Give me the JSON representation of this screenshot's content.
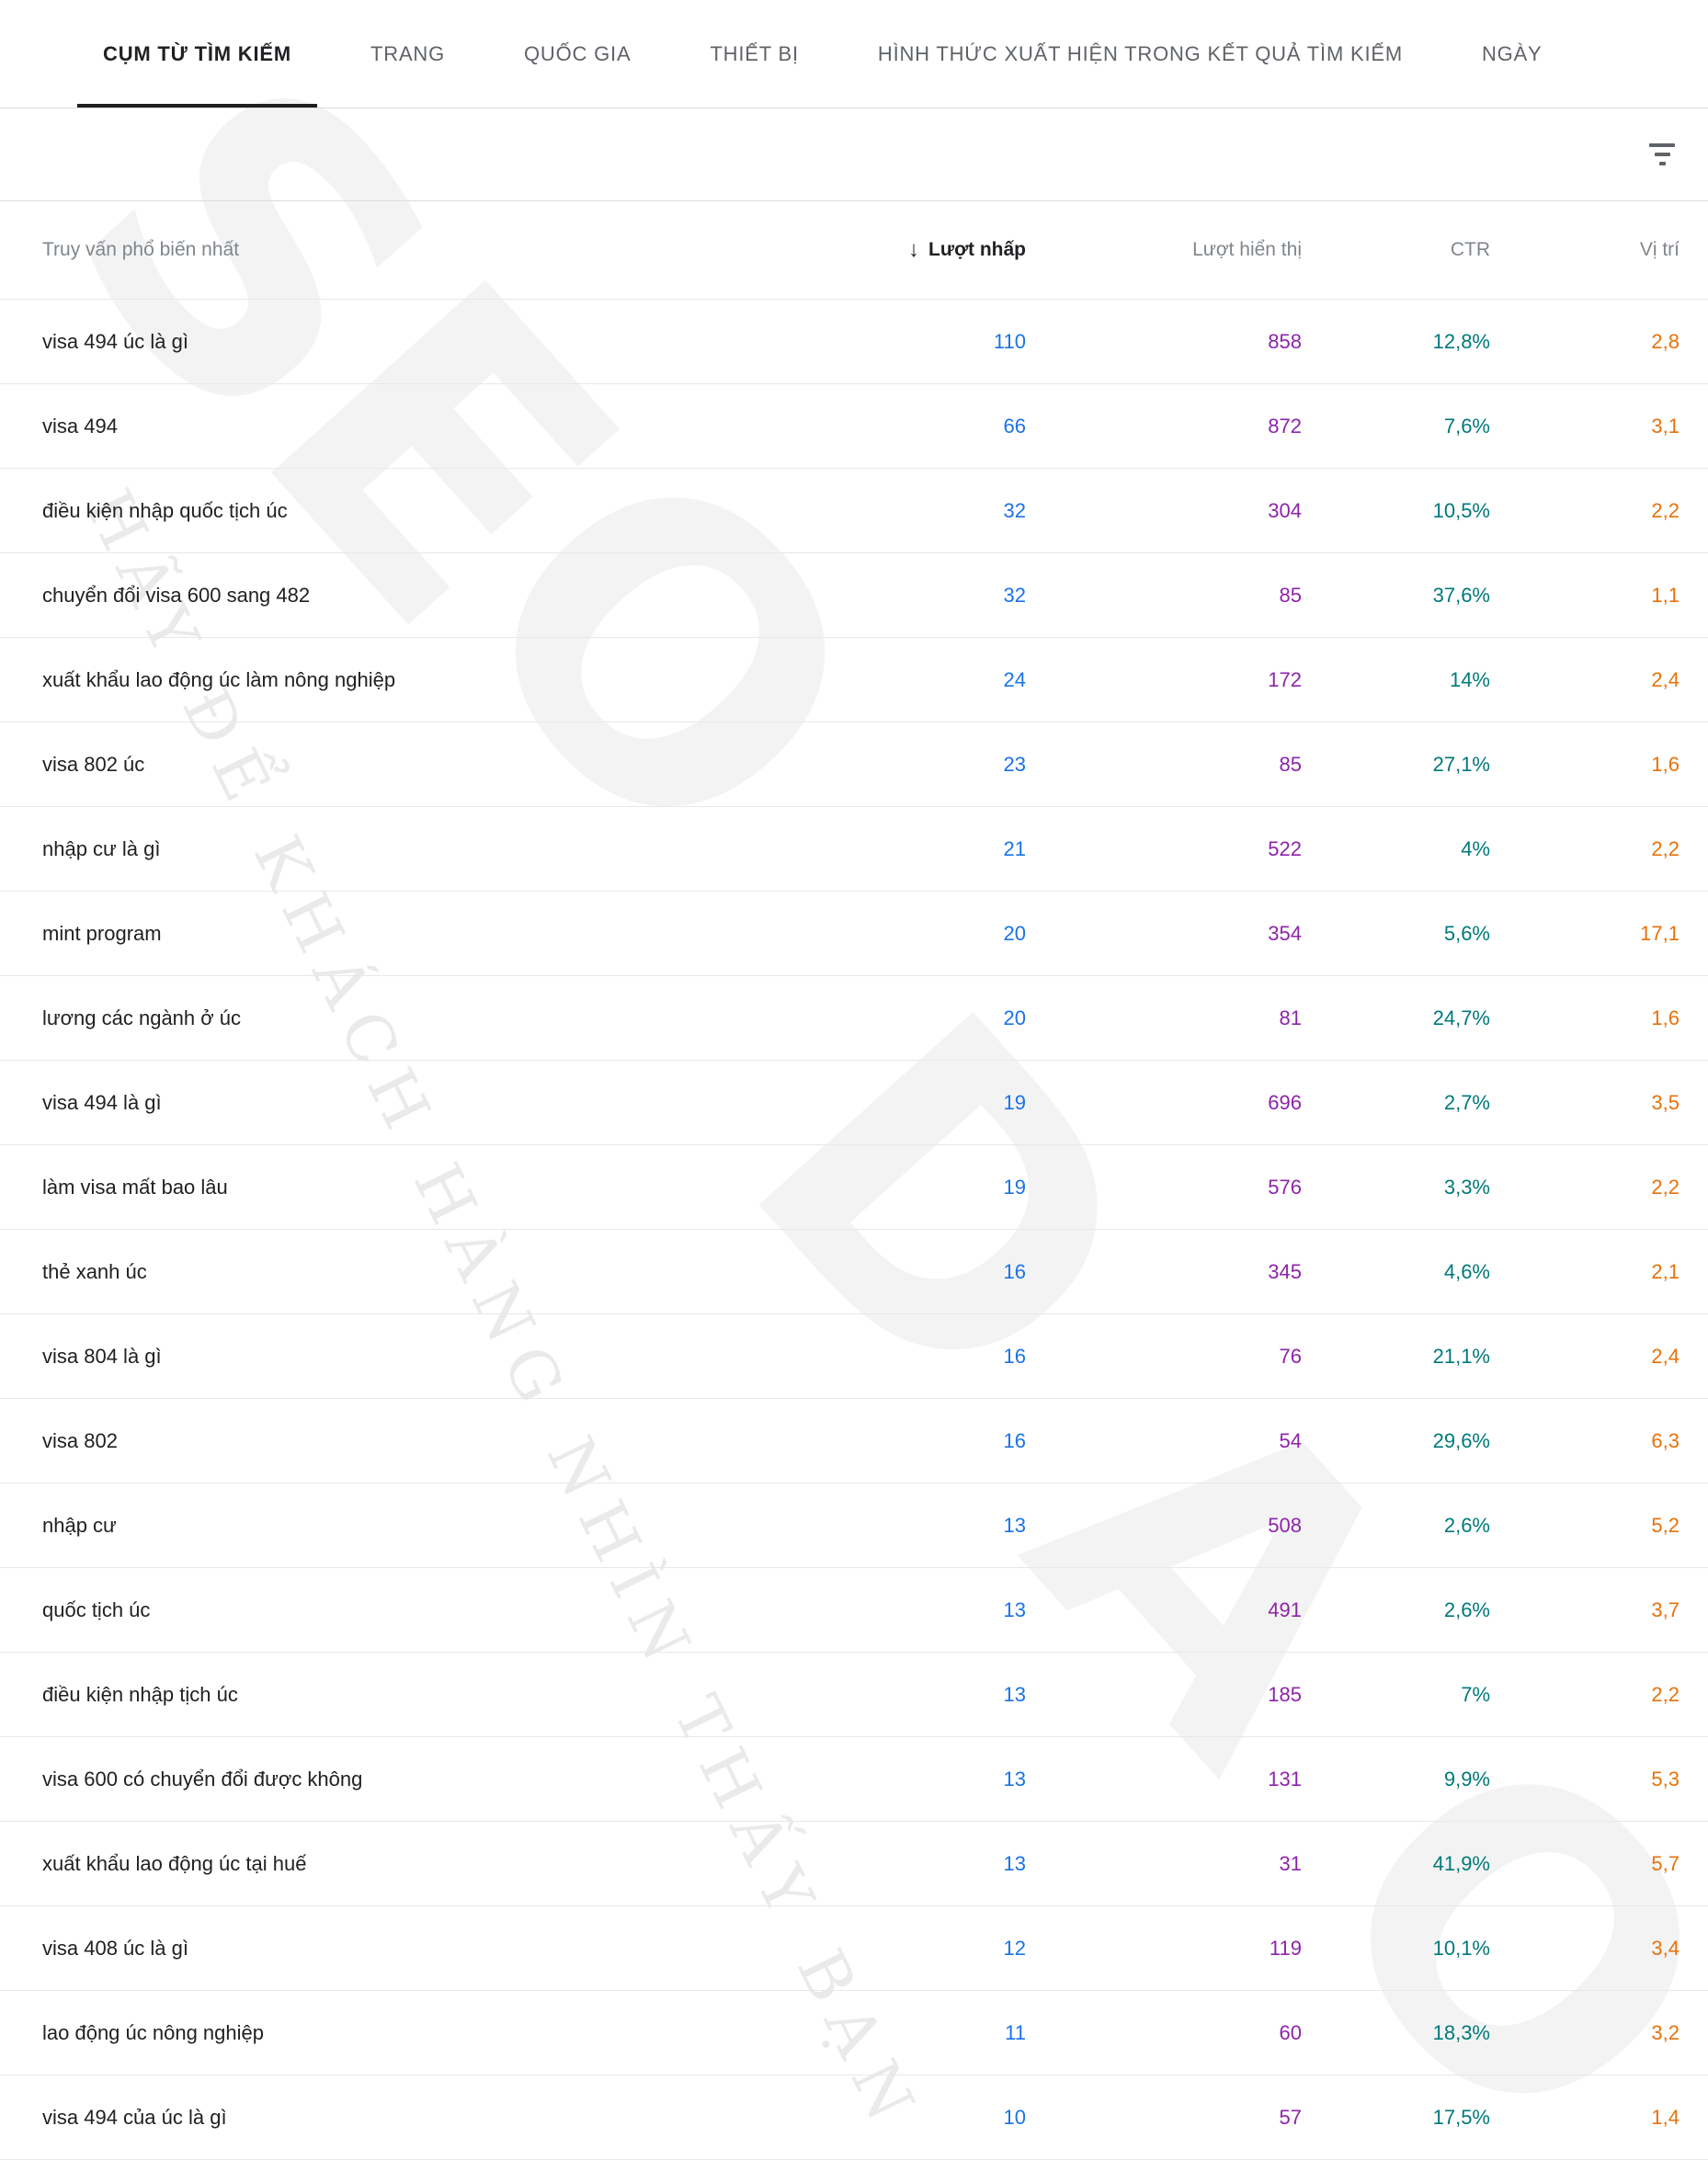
{
  "tabs": [
    {
      "label": "CỤM TỪ TÌM KIẾM",
      "active": true
    },
    {
      "label": "TRANG",
      "active": false
    },
    {
      "label": "QUỐC GIA",
      "active": false
    },
    {
      "label": "THIẾT BỊ",
      "active": false
    },
    {
      "label": "HÌNH THỨC XUẤT HIỆN TRONG KẾT QUẢ TÌM KIẾM",
      "active": false
    },
    {
      "label": "NGÀY",
      "active": false
    }
  ],
  "filter_bar": {
    "filter_icon": "filter-icon"
  },
  "table": {
    "columns": {
      "query": "Truy vấn phổ biến nhất",
      "clicks": "Lượt nhấp",
      "impressions": "Lượt hiển thị",
      "ctr": "CTR",
      "position": "Vị trí"
    },
    "sort": {
      "column": "clicks",
      "direction": "desc",
      "arrow": "↓"
    },
    "rows": [
      {
        "query": "visa 494 úc là gì",
        "clicks": "110",
        "impressions": "858",
        "ctr": "12,8%",
        "position": "2,8"
      },
      {
        "query": "visa 494",
        "clicks": "66",
        "impressions": "872",
        "ctr": "7,6%",
        "position": "3,1"
      },
      {
        "query": "điều kiện nhập quốc tịch úc",
        "clicks": "32",
        "impressions": "304",
        "ctr": "10,5%",
        "position": "2,2"
      },
      {
        "query": "chuyển đổi visa 600 sang 482",
        "clicks": "32",
        "impressions": "85",
        "ctr": "37,6%",
        "position": "1,1"
      },
      {
        "query": "xuất khẩu lao động úc làm nông nghiệp",
        "clicks": "24",
        "impressions": "172",
        "ctr": "14%",
        "position": "2,4"
      },
      {
        "query": "visa 802 úc",
        "clicks": "23",
        "impressions": "85",
        "ctr": "27,1%",
        "position": "1,6"
      },
      {
        "query": "nhập cư là gì",
        "clicks": "21",
        "impressions": "522",
        "ctr": "4%",
        "position": "2,2"
      },
      {
        "query": "mint program",
        "clicks": "20",
        "impressions": "354",
        "ctr": "5,6%",
        "position": "17,1"
      },
      {
        "query": "lương các ngành ở úc",
        "clicks": "20",
        "impressions": "81",
        "ctr": "24,7%",
        "position": "1,6"
      },
      {
        "query": "visa 494 là gì",
        "clicks": "19",
        "impressions": "696",
        "ctr": "2,7%",
        "position": "3,5"
      },
      {
        "query": "làm visa mất bao lâu",
        "clicks": "19",
        "impressions": "576",
        "ctr": "3,3%",
        "position": "2,2"
      },
      {
        "query": "thẻ xanh úc",
        "clicks": "16",
        "impressions": "345",
        "ctr": "4,6%",
        "position": "2,1"
      },
      {
        "query": "visa 804 là gì",
        "clicks": "16",
        "impressions": "76",
        "ctr": "21,1%",
        "position": "2,4"
      },
      {
        "query": "visa 802",
        "clicks": "16",
        "impressions": "54",
        "ctr": "29,6%",
        "position": "6,3"
      },
      {
        "query": "nhập cư",
        "clicks": "13",
        "impressions": "508",
        "ctr": "2,6%",
        "position": "5,2"
      },
      {
        "query": "quốc tịch úc",
        "clicks": "13",
        "impressions": "491",
        "ctr": "2,6%",
        "position": "3,7"
      },
      {
        "query": "điều kiện nhập tịch úc",
        "clicks": "13",
        "impressions": "185",
        "ctr": "7%",
        "position": "2,2"
      },
      {
        "query": "visa 600 có chuyển đổi được không",
        "clicks": "13",
        "impressions": "131",
        "ctr": "9,9%",
        "position": "5,3"
      },
      {
        "query": "xuất khẩu lao động úc tại huế",
        "clicks": "13",
        "impressions": "31",
        "ctr": "41,9%",
        "position": "5,7"
      },
      {
        "query": "visa 408 úc là gì",
        "clicks": "12",
        "impressions": "119",
        "ctr": "10,1%",
        "position": "3,4"
      },
      {
        "query": "lao động úc nông nghiệp",
        "clicks": "11",
        "impressions": "60",
        "ctr": "18,3%",
        "position": "3,2"
      },
      {
        "query": "visa 494 của úc là gì",
        "clicks": "10",
        "impressions": "57",
        "ctr": "17,5%",
        "position": "1,4"
      }
    ]
  },
  "watermark": {
    "letters": [
      "S",
      "E",
      "O",
      "D",
      "A",
      "O"
    ],
    "slogan": "HÃY ĐỂ KHÁCH HÀNG NHÌN THẤY BẠN"
  },
  "colors": {
    "clicks": "#1a73e8",
    "impressions": "#8e24aa",
    "ctr": "#00797b",
    "position": "#e8710a",
    "tab-active": "#202124",
    "tab-inactive": "#5f6368",
    "header-text": "#80868b",
    "query-text": "#202124",
    "row-border": "#e8e8e8",
    "section-border": "#dadce0",
    "watermark-letter": "#f3f3f3",
    "watermark-slogan": "#eaeaea"
  }
}
